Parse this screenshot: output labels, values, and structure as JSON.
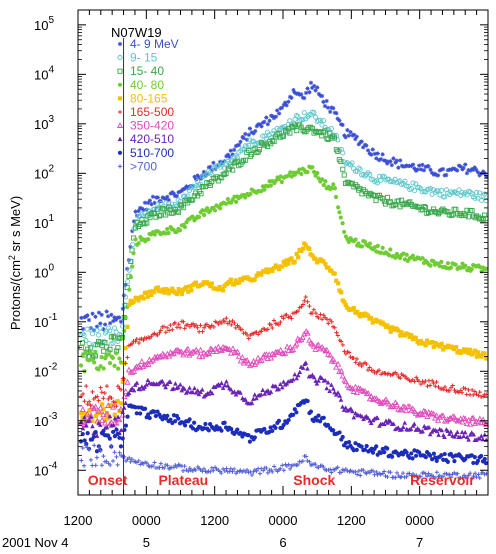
{
  "chart_data": {
    "type": "scatter",
    "title": "N07W19",
    "ylabel": "Protons/(cm2 sr s MeV)",
    "xlabel": "",
    "yscale": "log",
    "ylim_exp": [
      -4.5,
      5.3
    ],
    "xlim_hours": [
      0,
      72
    ],
    "grid": false,
    "legend_position": "top-left",
    "x_ticks": [
      {
        "hour": 0,
        "label": "1200",
        "date": "2001 Nov 4"
      },
      {
        "hour": 12,
        "label": "0000",
        "date": "5"
      },
      {
        "hour": 24,
        "label": "1200",
        "date": ""
      },
      {
        "hour": 36,
        "label": "0000",
        "date": "6"
      },
      {
        "hour": 48,
        "label": "1200",
        "date": ""
      },
      {
        "hour": 60,
        "label": "0000",
        "date": "7"
      }
    ],
    "y_ticks": [
      {
        "exp": 5,
        "label": "5"
      },
      {
        "exp": 4,
        "label": "4"
      },
      {
        "exp": 3,
        "label": "3"
      },
      {
        "exp": 2,
        "label": "2"
      },
      {
        "exp": 1,
        "label": "1"
      },
      {
        "exp": 0,
        "label": "0"
      },
      {
        "exp": -1,
        "label": "-1"
      },
      {
        "exp": -2,
        "label": "-2"
      },
      {
        "exp": -3,
        "label": "-3"
      },
      {
        "exp": -4,
        "label": "-4"
      }
    ],
    "onset_hour": 8,
    "annotations": [
      {
        "text": "Onset",
        "hour": 5.2
      },
      {
        "text": "Plateau",
        "hour": 18.5
      },
      {
        "text": "Shock",
        "hour": 41.5
      },
      {
        "text": "Reservoir",
        "hour": 64
      }
    ],
    "series": [
      {
        "name": "4- 9 MeV",
        "color": "#3a4fd6",
        "marker": "star",
        "points": [
          [
            0,
            -1
          ],
          [
            7.5,
            -1
          ],
          [
            10,
            1.2
          ],
          [
            14,
            1.5
          ],
          [
            18,
            1.6
          ],
          [
            22,
            2
          ],
          [
            26,
            2.3
          ],
          [
            30,
            2.8
          ],
          [
            36,
            3.3
          ],
          [
            38,
            3.7
          ],
          [
            39.5,
            3.5
          ],
          [
            41,
            3.8
          ],
          [
            43,
            3.5
          ],
          [
            45,
            3.2
          ],
          [
            47,
            2.8
          ],
          [
            49,
            2.7
          ],
          [
            52,
            2.4
          ],
          [
            56,
            2.2
          ],
          [
            60,
            2.1
          ],
          [
            64,
            2
          ],
          [
            68,
            2.1
          ],
          [
            72,
            2
          ]
        ]
      },
      {
        "name": "9- 15",
        "color": "#5cc6cc",
        "marker": "circle-open",
        "points": [
          [
            0,
            -1.3
          ],
          [
            7.5,
            -1.3
          ],
          [
            10,
            1
          ],
          [
            14,
            1.3
          ],
          [
            18,
            1.4
          ],
          [
            22,
            1.9
          ],
          [
            26,
            2.2
          ],
          [
            30,
            2.6
          ],
          [
            36,
            2.9
          ],
          [
            38,
            3.1
          ],
          [
            41,
            3.2
          ],
          [
            43,
            3
          ],
          [
            45,
            2.8
          ],
          [
            47,
            2.2
          ],
          [
            49,
            2.1
          ],
          [
            52,
            1.9
          ],
          [
            56,
            1.8
          ],
          [
            60,
            1.7
          ],
          [
            64,
            1.6
          ],
          [
            68,
            1.6
          ],
          [
            72,
            1.5
          ]
        ]
      },
      {
        "name": "15- 40",
        "color": "#39a84b",
        "marker": "square-open",
        "points": [
          [
            0,
            -1.5
          ],
          [
            7.5,
            -1.5
          ],
          [
            10,
            0.9
          ],
          [
            14,
            1.2
          ],
          [
            18,
            1.3
          ],
          [
            22,
            1.7
          ],
          [
            26,
            2
          ],
          [
            30,
            2.4
          ],
          [
            36,
            2.8
          ],
          [
            38,
            2.9
          ],
          [
            41,
            2.9
          ],
          [
            43,
            2.8
          ],
          [
            45,
            2.7
          ],
          [
            47,
            1.8
          ],
          [
            49,
            1.7
          ],
          [
            52,
            1.5
          ],
          [
            56,
            1.4
          ],
          [
            60,
            1.3
          ],
          [
            64,
            1.2
          ],
          [
            68,
            1.2
          ],
          [
            72,
            1.1
          ]
        ]
      },
      {
        "name": "40- 80",
        "color": "#6fcc33",
        "marker": "circle",
        "points": [
          [
            0,
            -1.8
          ],
          [
            7.5,
            -1.8
          ],
          [
            10,
            0.6
          ],
          [
            14,
            0.8
          ],
          [
            18,
            0.9
          ],
          [
            22,
            1.2
          ],
          [
            26,
            1.4
          ],
          [
            30,
            1.6
          ],
          [
            36,
            1.9
          ],
          [
            38,
            2
          ],
          [
            41,
            2.1
          ],
          [
            43,
            1.8
          ],
          [
            45,
            1.7
          ],
          [
            47,
            0.7
          ],
          [
            49,
            0.6
          ],
          [
            52,
            0.5
          ],
          [
            56,
            0.35
          ],
          [
            60,
            0.25
          ],
          [
            64,
            0.15
          ],
          [
            68,
            0.1
          ],
          [
            72,
            0.05
          ]
        ]
      },
      {
        "name": "80-165",
        "color": "#f5c000",
        "marker": "square",
        "points": [
          [
            0,
            -2.8
          ],
          [
            7.5,
            -2.8
          ],
          [
            9,
            -0.6
          ],
          [
            14,
            -0.35
          ],
          [
            18,
            -0.4
          ],
          [
            22,
            -0.2
          ],
          [
            25,
            -0.35
          ],
          [
            27,
            -0.2
          ],
          [
            30,
            -0.15
          ],
          [
            36,
            0.15
          ],
          [
            38,
            0.25
          ],
          [
            40,
            0.6
          ],
          [
            41,
            0.3
          ],
          [
            43,
            0.2
          ],
          [
            45,
            0
          ],
          [
            47,
            -0.7
          ],
          [
            49,
            -0.8
          ],
          [
            52,
            -1
          ],
          [
            56,
            -1.2
          ],
          [
            60,
            -1.4
          ],
          [
            64,
            -1.5
          ],
          [
            68,
            -1.6
          ],
          [
            72,
            -1.7
          ]
        ]
      },
      {
        "name": "165-500",
        "color": "#e52b2b",
        "marker": "plus",
        "points": [
          [
            0,
            -2.5
          ],
          [
            7.5,
            -2.5
          ],
          [
            9,
            -1.5
          ],
          [
            14,
            -1.2
          ],
          [
            18,
            -1.05
          ],
          [
            22,
            -1.15
          ],
          [
            26,
            -0.95
          ],
          [
            30,
            -1.3
          ],
          [
            36,
            -0.95
          ],
          [
            38,
            -0.85
          ],
          [
            40,
            -0.5
          ],
          [
            41,
            -0.8
          ],
          [
            43,
            -0.9
          ],
          [
            45,
            -1.1
          ],
          [
            47,
            -1.6
          ],
          [
            49,
            -1.8
          ],
          [
            52,
            -2
          ],
          [
            56,
            -2.1
          ],
          [
            60,
            -2.2
          ],
          [
            64,
            -2.3
          ],
          [
            68,
            -2.4
          ],
          [
            72,
            -2.5
          ]
        ]
      },
      {
        "name": "350-420",
        "color": "#e04bbd",
        "marker": "triangle-open",
        "points": [
          [
            0,
            -2.9
          ],
          [
            7.5,
            -2.9
          ],
          [
            9,
            -2
          ],
          [
            14,
            -1.7
          ],
          [
            18,
            -1.6
          ],
          [
            22,
            -1.65
          ],
          [
            26,
            -1.5
          ],
          [
            30,
            -1.85
          ],
          [
            36,
            -1.6
          ],
          [
            38,
            -1.5
          ],
          [
            40,
            -1.2
          ],
          [
            41,
            -1.5
          ],
          [
            43,
            -1.55
          ],
          [
            45,
            -1.8
          ],
          [
            47,
            -2.2
          ],
          [
            49,
            -2.4
          ],
          [
            52,
            -2.55
          ],
          [
            56,
            -2.7
          ],
          [
            60,
            -2.85
          ],
          [
            64,
            -2.95
          ],
          [
            68,
            -3
          ],
          [
            72,
            -3.05
          ]
        ]
      },
      {
        "name": "420-510",
        "color": "#6a23b8",
        "marker": "triangle",
        "points": [
          [
            0,
            -3.1
          ],
          [
            7.5,
            -3.1
          ],
          [
            9,
            -2.35
          ],
          [
            14,
            -2.2
          ],
          [
            18,
            -2.35
          ],
          [
            22,
            -2.45
          ],
          [
            26,
            -2.25
          ],
          [
            30,
            -2.6
          ],
          [
            36,
            -2.25
          ],
          [
            38,
            -2.1
          ],
          [
            40,
            -1.9
          ],
          [
            41,
            -2.15
          ],
          [
            43,
            -2.2
          ],
          [
            45,
            -2.4
          ],
          [
            47,
            -2.75
          ],
          [
            49,
            -2.9
          ],
          [
            52,
            -3
          ],
          [
            56,
            -3.1
          ],
          [
            60,
            -3.15
          ],
          [
            64,
            -3.25
          ],
          [
            68,
            -3.3
          ],
          [
            72,
            -3.35
          ]
        ]
      },
      {
        "name": "510-700",
        "color": "#1c2dbb",
        "marker": "circle",
        "points": [
          [
            0,
            -3.4
          ],
          [
            7.5,
            -3.4
          ],
          [
            9,
            -2.75
          ],
          [
            14,
            -2.9
          ],
          [
            18,
            -3
          ],
          [
            22,
            -3.15
          ],
          [
            26,
            -3.1
          ],
          [
            30,
            -3.35
          ],
          [
            36,
            -3.05
          ],
          [
            38,
            -2.8
          ],
          [
            40,
            -2.55
          ],
          [
            41,
            -2.9
          ],
          [
            43,
            -3
          ],
          [
            45,
            -3.2
          ],
          [
            47,
            -3.45
          ],
          [
            49,
            -3.55
          ],
          [
            52,
            -3.6
          ],
          [
            56,
            -3.65
          ],
          [
            60,
            -3.7
          ],
          [
            64,
            -3.75
          ],
          [
            68,
            -3.75
          ],
          [
            72,
            -3.8
          ]
        ]
      },
      {
        "name": ">700",
        "color": "#5560d6",
        "marker": "plus",
        "points": [
          [
            0,
            -3.7
          ],
          [
            7.5,
            -3.7
          ],
          [
            9,
            -3.8
          ],
          [
            14,
            -3.9
          ],
          [
            18,
            -3.95
          ],
          [
            22,
            -4
          ],
          [
            26,
            -4
          ],
          [
            30,
            -4.05
          ],
          [
            36,
            -3.95
          ],
          [
            38,
            -3.9
          ],
          [
            40,
            -3.75
          ],
          [
            41,
            -3.9
          ],
          [
            43,
            -3.95
          ],
          [
            45,
            -4
          ],
          [
            47,
            -4
          ],
          [
            49,
            -4.05
          ],
          [
            52,
            -4.05
          ],
          [
            56,
            -4.1
          ],
          [
            60,
            -4.1
          ],
          [
            64,
            -4.1
          ],
          [
            68,
            -4.1
          ],
          [
            72,
            -4.1
          ]
        ]
      }
    ]
  }
}
